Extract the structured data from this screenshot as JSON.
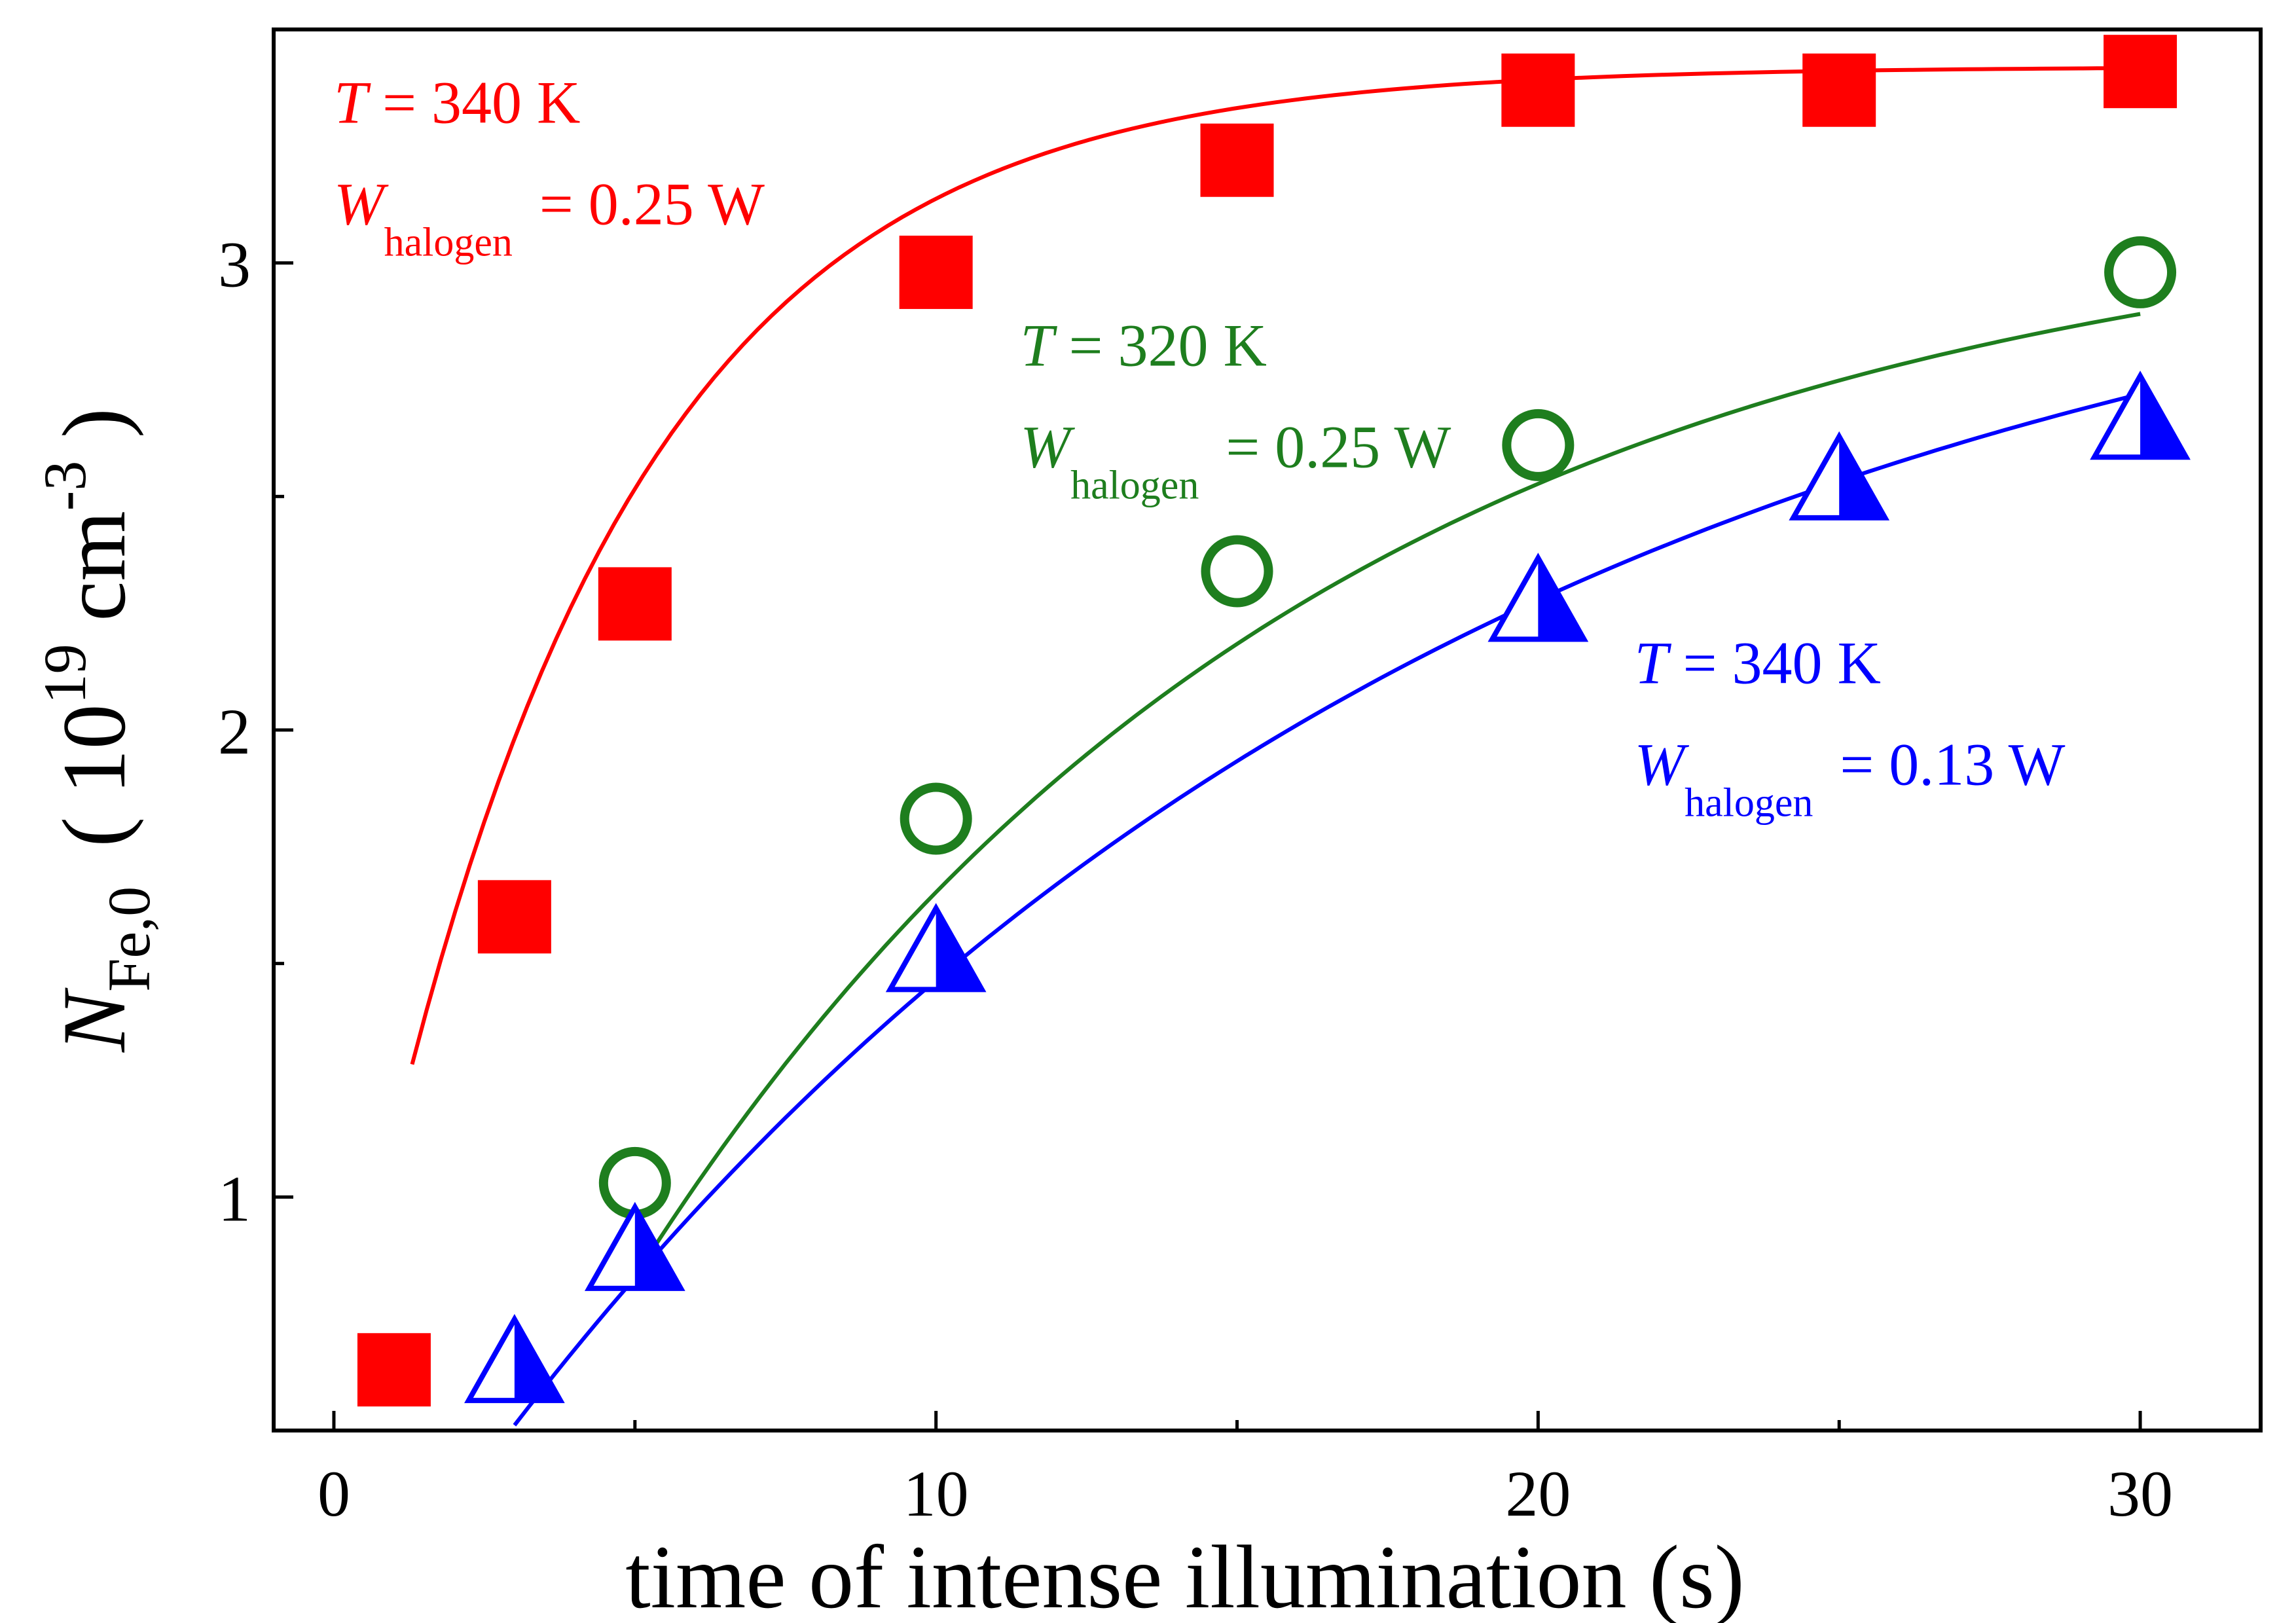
{
  "chart_data": {
    "type": "scatter",
    "xlabel": "time of intense illumination (s)",
    "ylabel": {
      "symbol": "N",
      "subscript": "Fe,0",
      "open": "( 10",
      "superscript": "19",
      "unit": " cm",
      "unit_superscript": "-3",
      "close": " )"
    },
    "xlim": [
      -1,
      32
    ],
    "ylim": [
      0.5,
      3.5
    ],
    "xticks": [
      0,
      10,
      20,
      30
    ],
    "xtick_labels": [
      "0",
      "10",
      "20",
      "30"
    ],
    "yticks": [
      1,
      2,
      3
    ],
    "ytick_labels": [
      "1",
      "2",
      "3"
    ],
    "grid": false,
    "legend": "none",
    "series": [
      {
        "name": "T = 340 K, W_halogen = 0.25 W",
        "marker": "square-filled",
        "color": "#ff0000",
        "x": [
          1,
          3,
          5,
          10,
          15,
          20,
          25,
          30
        ],
        "y": [
          0.63,
          1.6,
          2.27,
          2.98,
          3.22,
          3.37,
          3.37,
          3.41
        ],
        "fit": {
          "y0": 0.53,
          "A": 2.89,
          "tau": 4.3,
          "x_start": 1.3,
          "x_end": 30
        }
      },
      {
        "name": "T = 320 K, W_halogen = 0.25 W",
        "marker": "circle-open",
        "color": "#1e7e1e",
        "x": [
          5,
          10,
          15,
          20,
          30
        ],
        "y": [
          1.03,
          1.81,
          2.34,
          2.61,
          2.98
        ],
        "fit": {
          "y0": -0.45,
          "A": 3.6,
          "tau": 11.4,
          "x_start": 5,
          "x_end": 30
        }
      },
      {
        "name": "T = 340 K, W_halogen = 0.13 W",
        "marker": "triangle-half",
        "color": "#0000ff",
        "x": [
          3,
          5,
          10,
          20,
          25,
          30
        ],
        "y": [
          0.64,
          0.88,
          1.52,
          2.27,
          2.53,
          2.66
        ],
        "fit": {
          "y0": -0.04,
          "A": 3.28,
          "tau": 16.3,
          "x_start": 3,
          "x_end": 30
        }
      }
    ],
    "annotations": [
      {
        "color": "#ff0000",
        "anchor": [
          0,
          3.3
        ],
        "line1": {
          "var": "T",
          "rest": " = 340 K"
        },
        "line2": {
          "var": "W",
          "sub": "halogen",
          "rest": " = 0.25 W"
        }
      },
      {
        "color": "#1e7e1e",
        "anchor": [
          11.4,
          2.78
        ],
        "line1": {
          "var": "T",
          "rest": " = 320 K"
        },
        "line2": {
          "var": "W",
          "sub": "halogen",
          "rest": " = 0.25 W"
        }
      },
      {
        "color": "#0000ff",
        "anchor": [
          21.6,
          2.1
        ],
        "line1": {
          "var": "T",
          "rest": " = 340 K"
        },
        "line2": {
          "var": "W",
          "sub": "halogen",
          "rest": " = 0.13 W"
        }
      }
    ]
  }
}
